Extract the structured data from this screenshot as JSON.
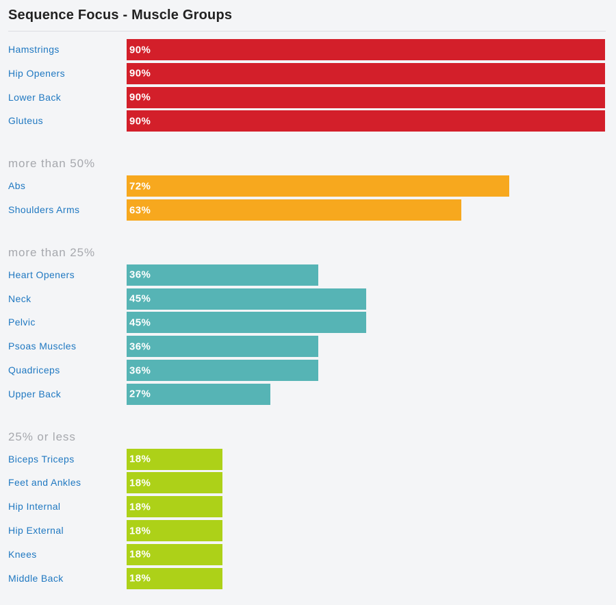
{
  "title": "Sequence Focus - Muscle Groups",
  "colors": {
    "high": "#d31f2a",
    "more_than_50": "#f7a81e",
    "more_than_25": "#56b4b5",
    "low": "#add118",
    "label": "#1f78c1",
    "heading": "#a6a8ad"
  },
  "chart_data": {
    "type": "bar",
    "orientation": "horizontal",
    "title": "Sequence Focus - Muscle Groups",
    "xlim": [
      0,
      100
    ],
    "unit": "%",
    "groups": [
      {
        "heading": "",
        "color_key": "high",
        "items": [
          {
            "label": "Hamstrings",
            "value": 90
          },
          {
            "label": "Hip Openers",
            "value": 90
          },
          {
            "label": "Lower Back",
            "value": 90
          },
          {
            "label": "Gluteus",
            "value": 90
          }
        ]
      },
      {
        "heading": "more than 50%",
        "color_key": "more_than_50",
        "items": [
          {
            "label": "Abs",
            "value": 72
          },
          {
            "label": "Shoulders Arms",
            "value": 63
          }
        ]
      },
      {
        "heading": "more than 25%",
        "color_key": "more_than_25",
        "items": [
          {
            "label": "Heart Openers",
            "value": 36
          },
          {
            "label": "Neck",
            "value": 45
          },
          {
            "label": "Pelvic",
            "value": 45
          },
          {
            "label": "Psoas Muscles",
            "value": 36
          },
          {
            "label": "Quadriceps",
            "value": 36
          },
          {
            "label": "Upper Back",
            "value": 27
          }
        ]
      },
      {
        "heading": "25% or less",
        "color_key": "low",
        "items": [
          {
            "label": "Biceps Triceps",
            "value": 18
          },
          {
            "label": "Feet and Ankles",
            "value": 18
          },
          {
            "label": "Hip Internal",
            "value": 18
          },
          {
            "label": "Hip External",
            "value": 18
          },
          {
            "label": "Knees",
            "value": 18
          },
          {
            "label": "Middle Back",
            "value": 18
          }
        ]
      }
    ]
  }
}
